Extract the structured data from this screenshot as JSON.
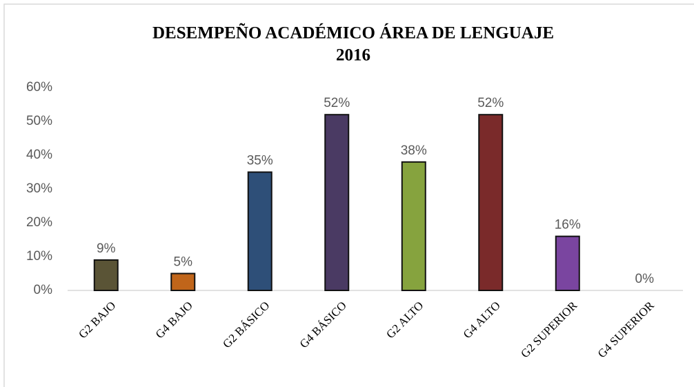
{
  "chart_data": {
    "type": "bar",
    "title": [
      "DESEMPEÑO ACADÉMICO ÁREA DE LENGUAJE",
      "2016"
    ],
    "categories": [
      "G2 BAJO",
      "G4 BAJO",
      "G2 BÁSICO",
      "G4 BÁSICO",
      "G2 ALTO",
      "G4 ALTO",
      "G2 SUPERIOR",
      "G4 SUPERIOR"
    ],
    "values": [
      9,
      5,
      35,
      52,
      38,
      52,
      16,
      0
    ],
    "value_labels": [
      "9%",
      "5%",
      "35%",
      "52%",
      "38%",
      "52%",
      "16%",
      "0%"
    ],
    "colors": [
      "#5a5436",
      "#c0651a",
      "#2e4f78",
      "#4a3a63",
      "#86a33e",
      "#7a2a2a",
      "#7a45a0",
      "#4472c4"
    ],
    "ylim": [
      0,
      60
    ],
    "yticks": [
      {
        "value": 0,
        "label": "0%"
      },
      {
        "value": 10,
        "label": "10%"
      },
      {
        "value": 20,
        "label": "20%"
      },
      {
        "value": 30,
        "label": "30%"
      },
      {
        "value": 40,
        "label": "40%"
      },
      {
        "value": 50,
        "label": "50%"
      },
      {
        "value": 60,
        "label": "60%"
      }
    ],
    "grid": false
  }
}
